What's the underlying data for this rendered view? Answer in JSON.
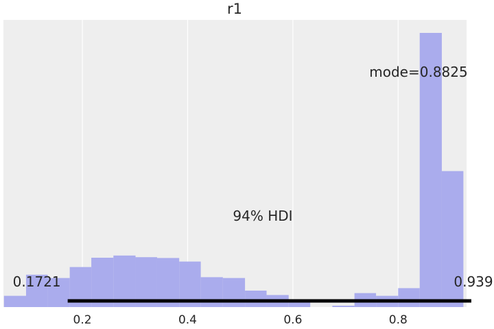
{
  "chart_data": {
    "type": "bar",
    "title": "r1",
    "xlabel": "",
    "ylabel": "",
    "xlim": [
      0.05,
      0.93
    ],
    "ylim": [
      0,
      1
    ],
    "grid": true,
    "x_ticks": [
      "0.2",
      "0.4",
      "0.6",
      "0.8"
    ],
    "x_tick_values": [
      0.2,
      0.4,
      0.6,
      0.8
    ],
    "bins": [
      {
        "x0": 0.051,
        "x1": 0.093,
        "value": 0.041
      },
      {
        "x0": 0.093,
        "x1": 0.134,
        "value": 0.118
      },
      {
        "x0": 0.134,
        "x1": 0.176,
        "value": 0.106
      },
      {
        "x0": 0.176,
        "x1": 0.217,
        "value": 0.146
      },
      {
        "x0": 0.217,
        "x1": 0.259,
        "value": 0.18
      },
      {
        "x0": 0.259,
        "x1": 0.301,
        "value": 0.188
      },
      {
        "x0": 0.301,
        "x1": 0.342,
        "value": 0.182
      },
      {
        "x0": 0.342,
        "x1": 0.384,
        "value": 0.179
      },
      {
        "x0": 0.384,
        "x1": 0.425,
        "value": 0.166
      },
      {
        "x0": 0.425,
        "x1": 0.467,
        "value": 0.109
      },
      {
        "x0": 0.467,
        "x1": 0.509,
        "value": 0.106
      },
      {
        "x0": 0.509,
        "x1": 0.55,
        "value": 0.06
      },
      {
        "x0": 0.55,
        "x1": 0.592,
        "value": 0.044
      },
      {
        "x0": 0.592,
        "x1": 0.633,
        "value": 0.018
      },
      {
        "x0": 0.675,
        "x1": 0.717,
        "value": 0.005
      },
      {
        "x0": 0.717,
        "x1": 0.758,
        "value": 0.051
      },
      {
        "x0": 0.758,
        "x1": 0.8,
        "value": 0.041
      },
      {
        "x0": 0.8,
        "x1": 0.841,
        "value": 0.069
      },
      {
        "x0": 0.841,
        "x1": 0.883,
        "value": 1.0
      },
      {
        "x0": 0.883,
        "x1": 0.924,
        "value": 0.496
      }
    ],
    "bar_color": "#aaaced",
    "background_color": "#eeeeee",
    "grid_color": "#ffffff",
    "hdi": {
      "label": "94% HDI",
      "low": 0.1721,
      "high": 0.939,
      "low_label": "0.1721",
      "high_label": "0.939"
    },
    "mode": {
      "label": "mode=0.8825",
      "value": 0.8825
    }
  }
}
